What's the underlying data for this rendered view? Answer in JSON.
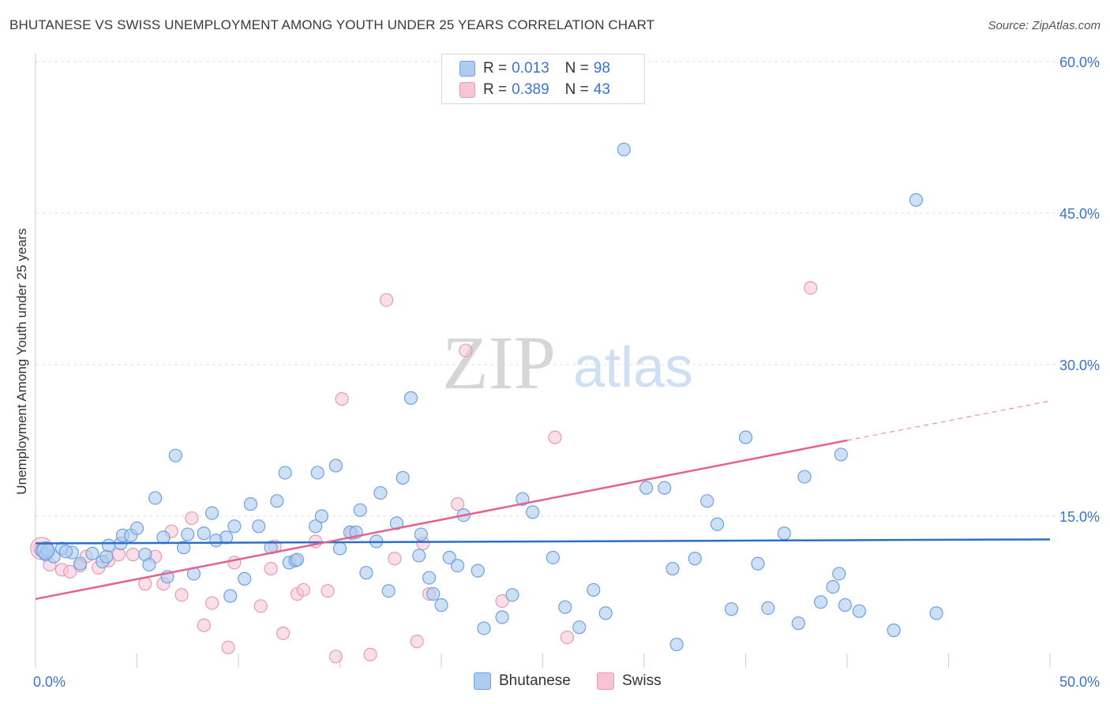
{
  "title": "BHUTANESE VS SWISS UNEMPLOYMENT AMONG YOUTH UNDER 25 YEARS CORRELATION CHART",
  "source": "Source: ZipAtlas.com",
  "watermark": {
    "zip": "ZIP",
    "atlas": "atlas"
  },
  "legend": {
    "r_label": "R =",
    "n_label": "N =",
    "bhutanese": {
      "r": "0.013",
      "n": "98"
    },
    "swiss": {
      "r": "0.389",
      "n": "43"
    }
  },
  "colors": {
    "bhutanese_fill": "#aecbf0",
    "bhutanese_stroke": "#6fa0e0",
    "bhutanese_line": "#2a6fc9",
    "swiss_fill": "#f7c4d5",
    "swiss_stroke": "#e79ab6",
    "swiss_line": "#e4628f",
    "tick_label": "#3a74d0",
    "grid": "#dddddd"
  },
  "chart_data": {
    "type": "scatter",
    "title": "BHUTANESE VS SWISS UNEMPLOYMENT AMONG YOUTH UNDER 25 YEARS CORRELATION CHART",
    "xlabel": "",
    "ylabel": "Unemployment Among Youth under 25 years",
    "xlim": [
      0,
      50
    ],
    "ylim": [
      0,
      60
    ],
    "x_tick_labels": [
      "0.0%",
      "50.0%"
    ],
    "y_ticks": [
      15,
      30,
      45,
      60
    ],
    "y_tick_labels": [
      "15.0%",
      "30.0%",
      "45.0%",
      "60.0%"
    ],
    "grid": "horizontal dashed",
    "legend_position": "top-center",
    "series": [
      {
        "name": "Bhutanese",
        "r": 0.013,
        "n": 98,
        "trend": {
          "x": [
            0,
            50
          ],
          "y": [
            12.3,
            12.7
          ]
        },
        "points": [
          [
            0.3,
            11.6
          ],
          [
            0.5,
            11.2
          ],
          [
            0.9,
            11.0
          ],
          [
            1.3,
            11.8
          ],
          [
            1.8,
            11.4
          ],
          [
            2.2,
            10.3
          ],
          [
            2.8,
            11.3
          ],
          [
            3.3,
            10.5
          ],
          [
            3.5,
            11.0
          ],
          [
            3.6,
            12.1
          ],
          [
            4.2,
            12.3
          ],
          [
            4.3,
            13.1
          ],
          [
            4.7,
            13.1
          ],
          [
            5.0,
            13.8
          ],
          [
            5.4,
            11.2
          ],
          [
            5.6,
            10.2
          ],
          [
            5.9,
            16.8
          ],
          [
            6.3,
            12.9
          ],
          [
            6.5,
            9.0
          ],
          [
            6.9,
            21.0
          ],
          [
            7.3,
            11.9
          ],
          [
            7.5,
            13.2
          ],
          [
            7.8,
            9.3
          ],
          [
            8.3,
            13.3
          ],
          [
            8.7,
            15.3
          ],
          [
            8.9,
            12.6
          ],
          [
            9.4,
            12.9
          ],
          [
            9.6,
            7.1
          ],
          [
            9.8,
            14.0
          ],
          [
            10.3,
            8.8
          ],
          [
            10.6,
            16.2
          ],
          [
            11.0,
            14.0
          ],
          [
            11.6,
            11.9
          ],
          [
            11.9,
            16.5
          ],
          [
            12.3,
            19.3
          ],
          [
            12.5,
            10.4
          ],
          [
            12.8,
            10.6
          ],
          [
            12.9,
            10.7
          ],
          [
            13.8,
            14.0
          ],
          [
            13.9,
            19.3
          ],
          [
            14.1,
            15.0
          ],
          [
            14.8,
            20.0
          ],
          [
            15.0,
            11.8
          ],
          [
            15.5,
            13.4
          ],
          [
            15.8,
            13.4
          ],
          [
            16.0,
            15.6
          ],
          [
            16.3,
            9.4
          ],
          [
            16.8,
            12.5
          ],
          [
            17.0,
            17.3
          ],
          [
            17.4,
            7.6
          ],
          [
            17.8,
            14.3
          ],
          [
            18.1,
            18.8
          ],
          [
            18.5,
            26.7
          ],
          [
            18.9,
            11.1
          ],
          [
            19.0,
            13.2
          ],
          [
            19.4,
            8.9
          ],
          [
            19.6,
            7.3
          ],
          [
            20.0,
            6.2
          ],
          [
            20.4,
            10.9
          ],
          [
            20.8,
            10.1
          ],
          [
            21.1,
            15.1
          ],
          [
            21.8,
            9.6
          ],
          [
            22.1,
            3.9
          ],
          [
            23.0,
            5.0
          ],
          [
            23.5,
            7.2
          ],
          [
            24.0,
            16.7
          ],
          [
            24.5,
            15.4
          ],
          [
            25.5,
            10.9
          ],
          [
            26.1,
            6.0
          ],
          [
            26.8,
            4.0
          ],
          [
            27.5,
            7.7
          ],
          [
            28.1,
            5.4
          ],
          [
            29.0,
            51.3
          ],
          [
            30.1,
            17.8
          ],
          [
            31.0,
            17.8
          ],
          [
            31.4,
            9.8
          ],
          [
            31.6,
            2.3
          ],
          [
            32.5,
            10.8
          ],
          [
            33.1,
            16.5
          ],
          [
            33.6,
            14.2
          ],
          [
            34.3,
            5.8
          ],
          [
            35.0,
            22.8
          ],
          [
            35.6,
            10.3
          ],
          [
            36.1,
            5.9
          ],
          [
            36.9,
            13.3
          ],
          [
            37.6,
            4.4
          ],
          [
            37.9,
            18.9
          ],
          [
            38.7,
            6.5
          ],
          [
            39.3,
            8.0
          ],
          [
            39.6,
            9.3
          ],
          [
            39.7,
            21.1
          ],
          [
            39.9,
            6.2
          ],
          [
            40.6,
            5.6
          ],
          [
            42.3,
            3.7
          ],
          [
            43.4,
            46.3
          ],
          [
            44.4,
            5.4
          ],
          [
            0.6,
            11.6
          ],
          [
            1.5,
            11.5
          ]
        ]
      },
      {
        "name": "Swiss",
        "r": 0.389,
        "n": 43,
        "trend": {
          "x": [
            0,
            40
          ],
          "y": [
            6.8,
            22.5
          ]
        },
        "trend_dashed": {
          "x": [
            40,
            50
          ],
          "y": [
            22.5,
            26.4
          ]
        },
        "points": [
          [
            0.2,
            11.8
          ],
          [
            0.7,
            10.2
          ],
          [
            1.3,
            9.7
          ],
          [
            1.7,
            9.5
          ],
          [
            2.2,
            10.1
          ],
          [
            2.5,
            11.0
          ],
          [
            3.1,
            9.9
          ],
          [
            3.6,
            10.6
          ],
          [
            4.1,
            11.2
          ],
          [
            4.8,
            11.2
          ],
          [
            5.4,
            8.3
          ],
          [
            5.9,
            11.0
          ],
          [
            6.3,
            8.3
          ],
          [
            6.7,
            13.5
          ],
          [
            7.2,
            7.2
          ],
          [
            7.7,
            14.8
          ],
          [
            8.3,
            4.2
          ],
          [
            8.7,
            6.4
          ],
          [
            9.5,
            2.0
          ],
          [
            9.8,
            10.4
          ],
          [
            11.1,
            6.1
          ],
          [
            11.6,
            9.8
          ],
          [
            11.8,
            12.0
          ],
          [
            12.2,
            3.4
          ],
          [
            12.9,
            7.3
          ],
          [
            13.2,
            7.7
          ],
          [
            13.8,
            12.5
          ],
          [
            14.4,
            7.6
          ],
          [
            14.8,
            1.1
          ],
          [
            15.1,
            26.6
          ],
          [
            15.6,
            13.3
          ],
          [
            16.5,
            1.3
          ],
          [
            17.3,
            36.4
          ],
          [
            17.7,
            10.8
          ],
          [
            18.8,
            2.6
          ],
          [
            19.1,
            12.3
          ],
          [
            19.4,
            7.3
          ],
          [
            20.8,
            16.2
          ],
          [
            21.2,
            31.4
          ],
          [
            23.0,
            6.6
          ],
          [
            25.6,
            22.8
          ],
          [
            26.2,
            3.0
          ],
          [
            38.2,
            37.6
          ]
        ]
      }
    ]
  },
  "bottom_legend": [
    "Bhutanese",
    "Swiss"
  ]
}
